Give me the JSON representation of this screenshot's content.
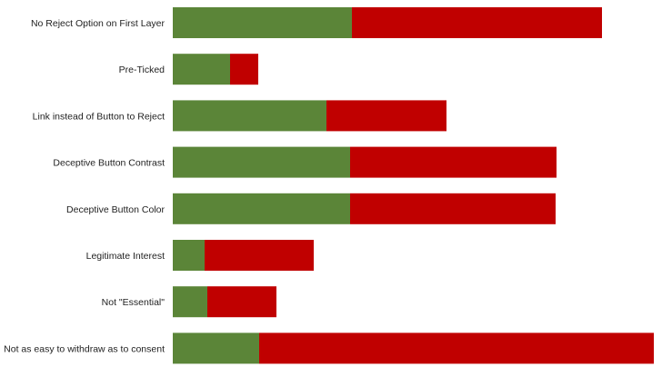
{
  "chart_data": {
    "type": "bar",
    "orientation": "horizontal",
    "stacked": true,
    "categories": [
      "No Reject Option on First Layer",
      "Pre-Ticked",
      "Link instead of Button to Reject",
      "Deceptive Button Contrast",
      "Deceptive Button Color",
      "Legitimate Interest",
      "Not \"Essential\"",
      "Not as easy to withdraw as to consent"
    ],
    "series": [
      {
        "values": [
          197,
          63,
          169,
          195,
          195,
          35,
          38,
          95
        ]
      },
      {
        "values": [
          275,
          31,
          132,
          227,
          226,
          120,
          76,
          434
        ]
      }
    ],
    "title": "",
    "xlabel": "",
    "ylabel": "",
    "grid": false,
    "legend": "none",
    "colors": [
      "#5b8538",
      "#c00000"
    ]
  }
}
